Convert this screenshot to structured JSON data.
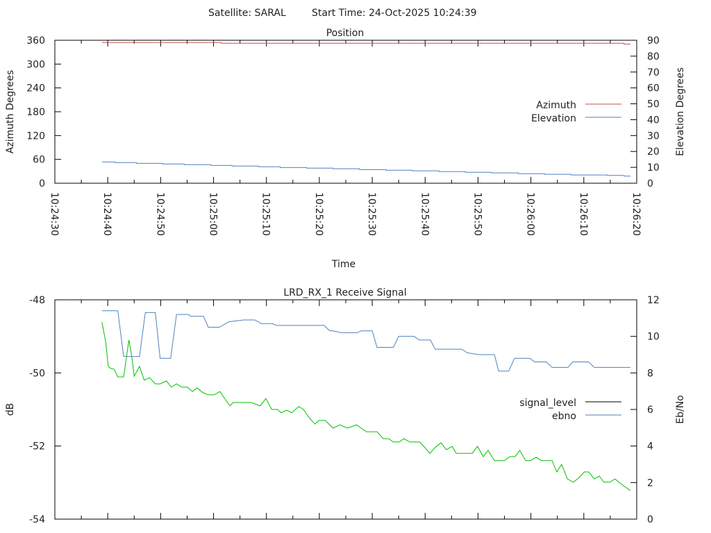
{
  "header": {
    "satellite": "Satellite: SARAL",
    "start_time": "Start Time: 24-Oct-2025 10:24:39"
  },
  "colors": {
    "azimuth": "#c0504d",
    "elevation": "#4f81bd",
    "signal_level": "#00c000",
    "signal_level_key": "#000000",
    "ebno": "#4f81bd",
    "axis": "#000000"
  },
  "chart_data": [
    {
      "type": "line",
      "title": "Position",
      "xlabel": "Time",
      "ylabel": "Azimuth Degrees",
      "y2label": "Elevation Degrees",
      "x_start": "10:24:30",
      "xlim_seconds": [
        0,
        110
      ],
      "x_tick_labels": [
        "10:24:30",
        "10:24:40",
        "10:24:50",
        "10:25:00",
        "10:25:10",
        "10:25:20",
        "10:25:30",
        "10:25:40",
        "10:25:50",
        "10:26:00",
        "10:26:10",
        "10:26:20"
      ],
      "ylim": [
        0,
        360
      ],
      "y_ticks": [
        "0",
        "60",
        "120",
        "180",
        "240",
        "300",
        "360"
      ],
      "y2lim": [
        0,
        90
      ],
      "y2_ticks": [
        "0",
        "10",
        "20",
        "30",
        "40",
        "50",
        "60",
        "70",
        "80",
        "90"
      ],
      "legend": [
        "Azimuth",
        "Elevation"
      ],
      "legend_position": "right",
      "series": [
        {
          "name": "Azimuth",
          "axis": "y",
          "step": true,
          "points": [
            [
              8.9,
              354.3
            ],
            [
              31.5,
              352.6
            ],
            [
              107.5,
              352.6
            ],
            [
              107.6,
              350.4
            ],
            [
              108.8,
              350.4
            ]
          ]
        },
        {
          "name": "Elevation",
          "axis": "y2",
          "step": true,
          "points": [
            [
              8.9,
              13.4
            ],
            [
              11.4,
              13.0
            ],
            [
              15.4,
              12.5
            ],
            [
              20.4,
              12.1
            ],
            [
              24.5,
              11.7
            ],
            [
              29.5,
              11.2
            ],
            [
              33.5,
              10.8
            ],
            [
              38.5,
              10.4
            ],
            [
              42.6,
              9.9
            ],
            [
              47.6,
              9.5
            ],
            [
              52.6,
              9.1
            ],
            [
              57.6,
              8.6
            ],
            [
              62.6,
              8.2
            ],
            [
              67.6,
              7.8
            ],
            [
              72.6,
              7.3
            ],
            [
              77.6,
              6.9
            ],
            [
              82.6,
              6.5
            ],
            [
              87.6,
              6.0
            ],
            [
              92.6,
              5.6
            ],
            [
              97.6,
              5.2
            ],
            [
              104.5,
              4.9
            ],
            [
              107.6,
              4.5
            ],
            [
              108.8,
              4.5
            ]
          ]
        }
      ]
    },
    {
      "type": "line",
      "title": "LRD_RX_1 Receive Signal",
      "ylabel": "dB",
      "y2label": "Eb/No",
      "xlim_seconds": [
        0,
        110
      ],
      "ylim": [
        -54,
        -48
      ],
      "y_ticks": [
        "-54",
        "-52",
        "-50",
        "-48"
      ],
      "y2lim": [
        0,
        12
      ],
      "y2_ticks": [
        "0",
        "2",
        "4",
        "6",
        "8",
        "10",
        "12"
      ],
      "legend": [
        "signal_level",
        "ebno"
      ],
      "legend_position": "right",
      "series": [
        {
          "name": "signal_level",
          "axis": "y",
          "points": [
            [
              8.9,
              -48.61
            ],
            [
              9.6,
              -49.14
            ],
            [
              10.1,
              -49.82
            ],
            [
              10.6,
              -49.88
            ],
            [
              11.2,
              -49.9
            ],
            [
              11.9,
              -50.11
            ],
            [
              13.0,
              -50.11
            ],
            [
              14.0,
              -49.1
            ],
            [
              14.6,
              -49.61
            ],
            [
              15.0,
              -50.09
            ],
            [
              16.0,
              -49.82
            ],
            [
              16.9,
              -50.2
            ],
            [
              17.9,
              -50.13
            ],
            [
              19.0,
              -50.3
            ],
            [
              19.9,
              -50.3
            ],
            [
              21.1,
              -50.22
            ],
            [
              22.0,
              -50.39
            ],
            [
              23.0,
              -50.3
            ],
            [
              24.0,
              -50.39
            ],
            [
              25.1,
              -50.39
            ],
            [
              26.0,
              -50.51
            ],
            [
              26.9,
              -50.41
            ],
            [
              28.0,
              -50.54
            ],
            [
              29.0,
              -50.6
            ],
            [
              30.1,
              -50.6
            ],
            [
              31.2,
              -50.51
            ],
            [
              32.2,
              -50.72
            ],
            [
              33.1,
              -50.9
            ],
            [
              33.7,
              -50.81
            ],
            [
              37.1,
              -50.81
            ],
            [
              38.8,
              -50.9
            ],
            [
              39.9,
              -50.7
            ],
            [
              41.0,
              -51.0
            ],
            [
              42.1,
              -51.0
            ],
            [
              42.8,
              -51.09
            ],
            [
              43.8,
              -51.02
            ],
            [
              44.8,
              -51.09
            ],
            [
              46.1,
              -50.92
            ],
            [
              47.0,
              -51.0
            ],
            [
              48.2,
              -51.25
            ],
            [
              49.2,
              -51.4
            ],
            [
              49.9,
              -51.3
            ],
            [
              51.1,
              -51.3
            ],
            [
              52.6,
              -51.51
            ],
            [
              53.9,
              -51.42
            ],
            [
              55.3,
              -51.51
            ],
            [
              57.0,
              -51.42
            ],
            [
              58.9,
              -51.61
            ],
            [
              60.9,
              -51.61
            ],
            [
              62.1,
              -51.8
            ],
            [
              63.1,
              -51.8
            ],
            [
              64.0,
              -51.89
            ],
            [
              65.1,
              -51.89
            ],
            [
              66.0,
              -51.8
            ],
            [
              67.1,
              -51.89
            ],
            [
              69.0,
              -51.89
            ],
            [
              70.9,
              -52.2
            ],
            [
              71.9,
              -52.04
            ],
            [
              73.0,
              -51.91
            ],
            [
              74.0,
              -52.1
            ],
            [
              75.1,
              -52.01
            ],
            [
              75.9,
              -52.2
            ],
            [
              78.9,
              -52.2
            ],
            [
              79.9,
              -52.01
            ],
            [
              81.0,
              -52.29
            ],
            [
              81.9,
              -52.12
            ],
            [
              83.1,
              -52.4
            ],
            [
              85.0,
              -52.4
            ],
            [
              86.0,
              -52.29
            ],
            [
              87.0,
              -52.29
            ],
            [
              87.9,
              -52.12
            ],
            [
              89.0,
              -52.4
            ],
            [
              89.9,
              -52.4
            ],
            [
              91.0,
              -52.31
            ],
            [
              92.0,
              -52.4
            ],
            [
              94.0,
              -52.4
            ],
            [
              94.9,
              -52.71
            ],
            [
              95.8,
              -52.5
            ],
            [
              96.9,
              -52.9
            ],
            [
              98.0,
              -52.99
            ],
            [
              99.0,
              -52.88
            ],
            [
              100.1,
              -52.71
            ],
            [
              100.9,
              -52.71
            ],
            [
              102.0,
              -52.9
            ],
            [
              102.9,
              -52.82
            ],
            [
              103.8,
              -52.99
            ],
            [
              104.9,
              -52.99
            ],
            [
              105.9,
              -52.9
            ],
            [
              106.8,
              -53.01
            ],
            [
              108.8,
              -53.22
            ]
          ]
        },
        {
          "name": "ebno",
          "axis": "y2",
          "points": [
            [
              8.9,
              11.4
            ],
            [
              11.9,
              11.4
            ],
            [
              13.0,
              8.9
            ],
            [
              16.0,
              8.9
            ],
            [
              17.1,
              11.3
            ],
            [
              19.0,
              11.3
            ],
            [
              19.9,
              8.8
            ],
            [
              21.9,
              8.8
            ],
            [
              23.0,
              11.2
            ],
            [
              25.2,
              11.2
            ],
            [
              25.7,
              11.1
            ],
            [
              28.1,
              11.1
            ],
            [
              29.0,
              10.5
            ],
            [
              31.1,
              10.5
            ],
            [
              32.9,
              10.8
            ],
            [
              35.7,
              10.9
            ],
            [
              37.8,
              10.9
            ],
            [
              39.0,
              10.7
            ],
            [
              41.1,
              10.7
            ],
            [
              41.9,
              10.6
            ],
            [
              50.9,
              10.6
            ],
            [
              52.0,
              10.3
            ],
            [
              52.6,
              10.3
            ],
            [
              54.2,
              10.2
            ],
            [
              57.2,
              10.2
            ],
            [
              57.9,
              10.3
            ],
            [
              60.0,
              10.3
            ],
            [
              60.9,
              9.4
            ],
            [
              64.0,
              9.4
            ],
            [
              65.0,
              10.0
            ],
            [
              67.9,
              10.0
            ],
            [
              68.9,
              9.8
            ],
            [
              71.0,
              9.8
            ],
            [
              71.9,
              9.3
            ],
            [
              76.9,
              9.3
            ],
            [
              78.0,
              9.1
            ],
            [
              80.2,
              9.0
            ],
            [
              83.1,
              9.0
            ],
            [
              83.9,
              8.1
            ],
            [
              85.8,
              8.1
            ],
            [
              86.9,
              8.8
            ],
            [
              89.8,
              8.8
            ],
            [
              90.7,
              8.6
            ],
            [
              92.9,
              8.6
            ],
            [
              94.0,
              8.3
            ],
            [
              97.0,
              8.3
            ],
            [
              97.9,
              8.6
            ],
            [
              100.9,
              8.6
            ],
            [
              102.0,
              8.3
            ],
            [
              108.8,
              8.3
            ]
          ]
        }
      ]
    }
  ]
}
